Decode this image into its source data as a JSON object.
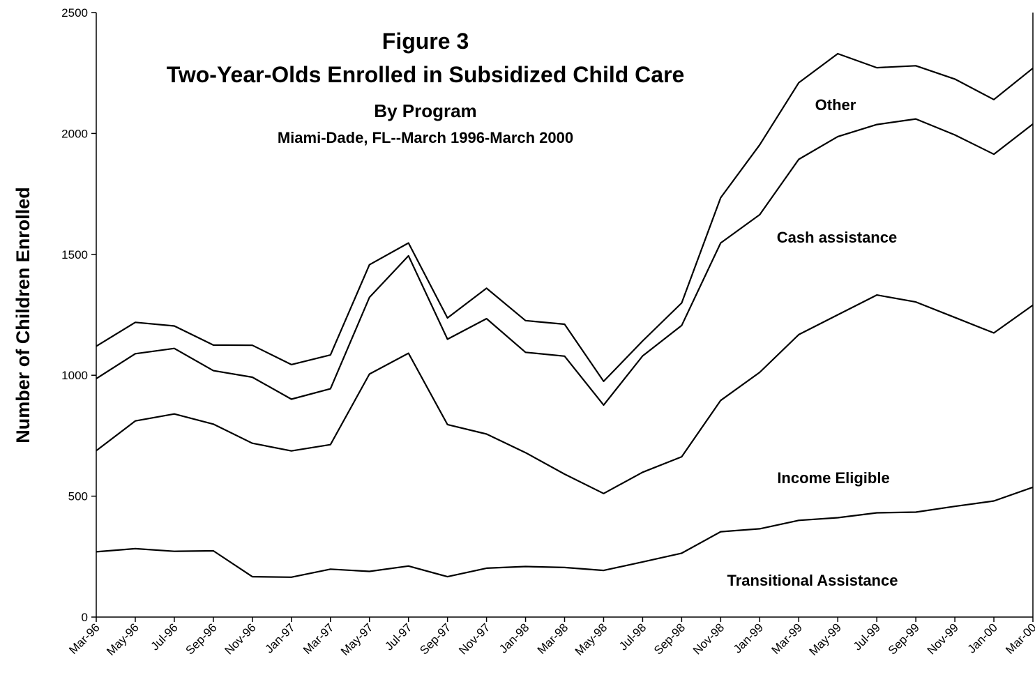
{
  "chart_data": {
    "type": "line",
    "title": "Figure 3",
    "subtitle_lines": [
      "Two-Year-Olds Enrolled in Subsidized Child Care",
      "By Program",
      "Miami-Dade, FL--March 1996-March 2000"
    ],
    "xlabel": "",
    "ylabel": "Number of Children Enrolled",
    "ylim": [
      0,
      2500
    ],
    "yticks": [
      "0",
      "500",
      "1000",
      "1500",
      "2000",
      "2500"
    ],
    "categories": [
      "Mar-96",
      "May-96",
      "Jul-96",
      "Sep-96",
      "Nov-96",
      "Jan-97",
      "Mar-97",
      "May-97",
      "Jul-97",
      "Sep-97",
      "Nov-97",
      "Jan-98",
      "Mar-98",
      "May-98",
      "Jul-98",
      "Sep-98",
      "Nov-98",
      "Jan-99",
      "Mar-99",
      "May-99",
      "Jul-99",
      "Sep-99",
      "Nov-99",
      "Jan-00",
      "Mar-00"
    ],
    "grid": false,
    "series": [
      {
        "name": "Transitional Assistance",
        "values": [
          270,
          283,
          272,
          274,
          167,
          165,
          198,
          189,
          211,
          167,
          202,
          209,
          205,
          193,
          228,
          264,
          353,
          365,
          400,
          411,
          431,
          434,
          458,
          480,
          537
        ]
      },
      {
        "name": "Income Eligible",
        "values": [
          688,
          811,
          840,
          798,
          719,
          687,
          713,
          1005,
          1091,
          796,
          757,
          680,
          591,
          511,
          599,
          663,
          896,
          1012,
          1168,
          1250,
          1332,
          1303,
          1239,
          1175,
          1290
        ]
      },
      {
        "name": "Cash assistance",
        "values": [
          986,
          1089,
          1111,
          1019,
          992,
          901,
          944,
          1322,
          1494,
          1149,
          1234,
          1095,
          1079,
          877,
          1080,
          1206,
          1547,
          1664,
          1893,
          1987,
          2037,
          2060,
          1994,
          1914,
          2039
        ]
      },
      {
        "name": "Other",
        "values": [
          1120,
          1219,
          1204,
          1125,
          1124,
          1044,
          1084,
          1457,
          1547,
          1237,
          1360,
          1226,
          1211,
          975,
          1142,
          1299,
          1734,
          1953,
          2210,
          2330,
          2272,
          2280,
          2225,
          2140,
          2270
        ]
      }
    ]
  }
}
